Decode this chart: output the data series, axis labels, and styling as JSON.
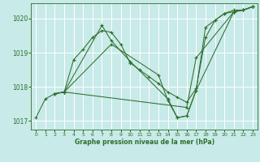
{
  "title": "Graphe pression niveau de la mer (hPa)",
  "background_color": "#c8eae8",
  "grid_color": "#ffffff",
  "line_color": "#2d6e2d",
  "xlim": [
    -0.5,
    23.5
  ],
  "ylim": [
    1016.75,
    1020.45
  ],
  "yticks": [
    1017,
    1018,
    1019,
    1020
  ],
  "xticks": [
    0,
    1,
    2,
    3,
    4,
    5,
    6,
    7,
    8,
    9,
    10,
    11,
    12,
    13,
    14,
    15,
    16,
    17,
    18,
    19,
    20,
    21,
    22,
    23
  ],
  "series_x": [
    [
      0,
      1,
      2,
      3,
      4,
      5,
      6,
      7,
      8,
      9,
      10,
      11,
      12,
      13,
      14,
      15,
      16,
      17,
      18,
      19,
      20,
      21,
      22,
      23
    ],
    [
      2,
      3,
      7,
      8,
      10,
      14,
      15,
      16,
      17,
      18,
      19,
      20,
      21,
      22,
      23
    ],
    [
      2,
      3,
      8,
      13,
      14,
      15,
      16,
      17,
      21,
      22,
      23
    ],
    [
      2,
      3,
      16,
      17,
      21,
      22,
      23
    ]
  ],
  "series_y": [
    [
      1017.1,
      1017.65,
      1017.8,
      1017.85,
      1018.8,
      1019.1,
      1019.45,
      1019.65,
      1019.6,
      1019.25,
      1018.7,
      1018.5,
      1018.3,
      1018.1,
      1017.85,
      1017.7,
      1017.55,
      1017.95,
      1019.45,
      1019.95,
      1020.15,
      1020.25,
      1020.25,
      1020.35
    ],
    [
      1017.8,
      1017.85,
      1019.8,
      1019.35,
      1018.75,
      1017.65,
      1017.1,
      1017.15,
      1017.9,
      1019.75,
      1019.95,
      1020.15,
      1020.2,
      1020.25,
      1020.35
    ],
    [
      1017.8,
      1017.85,
      1019.25,
      1018.35,
      1017.6,
      1017.1,
      1017.15,
      1017.9,
      1020.2,
      1020.25,
      1020.35
    ],
    [
      1017.8,
      1017.85,
      1017.4,
      1018.85,
      1020.2,
      1020.25,
      1020.35
    ]
  ]
}
